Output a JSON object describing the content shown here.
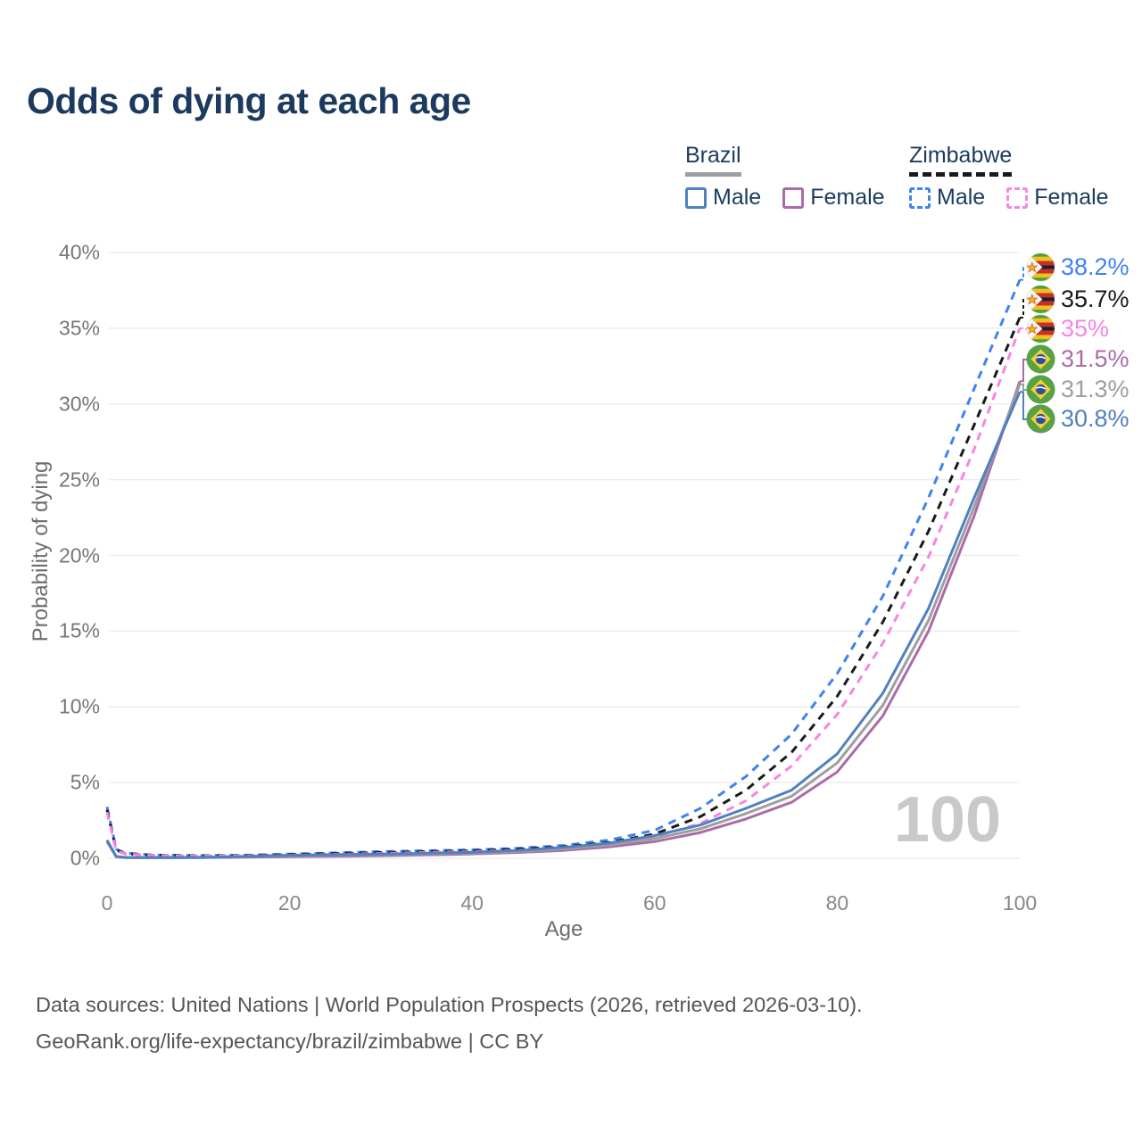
{
  "title": "Odds of dying at each age",
  "legend": {
    "brazil": {
      "label": "Brazil",
      "male": "Male",
      "female": "Female"
    },
    "zimbabwe": {
      "label": "Zimbabwe",
      "male": "Male",
      "female": "Female"
    }
  },
  "axes": {
    "y_label": "Probability of dying",
    "x_label": "Age",
    "y_tick_values": [
      0,
      5,
      10,
      15,
      20,
      25,
      30,
      35,
      40
    ],
    "y_tick_labels": [
      "0%",
      "5%",
      "10%",
      "15%",
      "20%",
      "25%",
      "30%",
      "35%",
      "40%"
    ],
    "x_tick_values": [
      0,
      20,
      40,
      60,
      80,
      100
    ],
    "x_tick_labels": [
      "0",
      "20",
      "40",
      "60",
      "80",
      "100"
    ]
  },
  "hover_age": "100",
  "footer": {
    "line1": "Data sources: United Nations | World Population Prospects (2026, retrieved 2026-03-10).",
    "line2": "GeoRank.org/life-expectancy/brazil/zimbabwe | CC BY"
  },
  "colors": {
    "title": "#1c3a5e",
    "grid": "#ececec",
    "brazil_total": "#9e9e9e",
    "zimbabwe_total": "#1a1a1a"
  },
  "chart_data": {
    "type": "line",
    "xlabel": "Age",
    "ylabel": "Probability of dying",
    "xlim": [
      0,
      100
    ],
    "ylim": [
      0,
      40
    ],
    "grid": "horizontal",
    "x_units": "years",
    "y_units": "percent",
    "series": [
      {
        "name": "Zimbabwe Male",
        "country": "Zimbabwe",
        "sex": "male",
        "color": "#3f82f2",
        "dash": true,
        "flag": "zw",
        "end_label": "38.2%",
        "points": [
          [
            0,
            3.4
          ],
          [
            1,
            0.6
          ],
          [
            2,
            0.35
          ],
          [
            5,
            0.22
          ],
          [
            10,
            0.18
          ],
          [
            15,
            0.2
          ],
          [
            20,
            0.28
          ],
          [
            25,
            0.36
          ],
          [
            30,
            0.44
          ],
          [
            35,
            0.5
          ],
          [
            40,
            0.56
          ],
          [
            45,
            0.66
          ],
          [
            50,
            0.85
          ],
          [
            55,
            1.2
          ],
          [
            60,
            1.85
          ],
          [
            65,
            3.3
          ],
          [
            70,
            5.4
          ],
          [
            75,
            8.2
          ],
          [
            80,
            12.2
          ],
          [
            85,
            17.3
          ],
          [
            90,
            23.8
          ],
          [
            95,
            31.0
          ],
          [
            100,
            38.2
          ]
        ]
      },
      {
        "name": "Zimbabwe Both sexes",
        "country": "Zimbabwe",
        "sex": "total",
        "color": "#1a1a1a",
        "dash": true,
        "flag": "zw",
        "end_label": "35.7%",
        "points": [
          [
            0,
            3.2
          ],
          [
            1,
            0.55
          ],
          [
            2,
            0.3
          ],
          [
            5,
            0.2
          ],
          [
            10,
            0.16
          ],
          [
            15,
            0.18
          ],
          [
            20,
            0.24
          ],
          [
            25,
            0.31
          ],
          [
            30,
            0.38
          ],
          [
            35,
            0.44
          ],
          [
            40,
            0.5
          ],
          [
            45,
            0.6
          ],
          [
            50,
            0.76
          ],
          [
            55,
            1.05
          ],
          [
            60,
            1.6
          ],
          [
            65,
            2.75
          ],
          [
            70,
            4.5
          ],
          [
            75,
            7.0
          ],
          [
            80,
            10.7
          ],
          [
            85,
            15.6
          ],
          [
            90,
            21.6
          ],
          [
            95,
            28.6
          ],
          [
            100,
            35.7
          ]
        ]
      },
      {
        "name": "Zimbabwe Female",
        "country": "Zimbabwe",
        "sex": "female",
        "color": "#f884e4",
        "dash": true,
        "flag": "zw",
        "end_label": "35%",
        "points": [
          [
            0,
            3.05
          ],
          [
            1,
            0.5
          ],
          [
            2,
            0.28
          ],
          [
            5,
            0.18
          ],
          [
            10,
            0.14
          ],
          [
            15,
            0.16
          ],
          [
            20,
            0.2
          ],
          [
            25,
            0.26
          ],
          [
            30,
            0.32
          ],
          [
            35,
            0.38
          ],
          [
            40,
            0.44
          ],
          [
            45,
            0.53
          ],
          [
            50,
            0.67
          ],
          [
            55,
            0.92
          ],
          [
            60,
            1.4
          ],
          [
            65,
            2.3
          ],
          [
            70,
            3.8
          ],
          [
            75,
            6.1
          ],
          [
            80,
            9.5
          ],
          [
            85,
            14.2
          ],
          [
            90,
            19.9
          ],
          [
            95,
            27.0
          ],
          [
            100,
            35.0
          ]
        ]
      },
      {
        "name": "Brazil Female",
        "country": "Brazil",
        "sex": "female",
        "color": "#ab6ba8",
        "dash": false,
        "flag": "br",
        "end_label": "31.5%",
        "points": [
          [
            0,
            1.1
          ],
          [
            1,
            0.1
          ],
          [
            2,
            0.05
          ],
          [
            5,
            0.04
          ],
          [
            10,
            0.045
          ],
          [
            15,
            0.07
          ],
          [
            20,
            0.1
          ],
          [
            25,
            0.13
          ],
          [
            30,
            0.17
          ],
          [
            35,
            0.22
          ],
          [
            40,
            0.29
          ],
          [
            45,
            0.38
          ],
          [
            50,
            0.52
          ],
          [
            55,
            0.75
          ],
          [
            60,
            1.1
          ],
          [
            65,
            1.7
          ],
          [
            70,
            2.6
          ],
          [
            75,
            3.7
          ],
          [
            80,
            5.7
          ],
          [
            85,
            9.4
          ],
          [
            90,
            15.0
          ],
          [
            95,
            22.6
          ],
          [
            100,
            31.5
          ]
        ]
      },
      {
        "name": "Brazil Both sexes",
        "country": "Brazil",
        "sex": "total",
        "color": "#9e9e9e",
        "dash": false,
        "flag": "br",
        "end_label": "31.3%",
        "points": [
          [
            0,
            1.15
          ],
          [
            1,
            0.11
          ],
          [
            2,
            0.055
          ],
          [
            5,
            0.045
          ],
          [
            10,
            0.05
          ],
          [
            15,
            0.1
          ],
          [
            20,
            0.16
          ],
          [
            25,
            0.2
          ],
          [
            30,
            0.23
          ],
          [
            35,
            0.28
          ],
          [
            40,
            0.35
          ],
          [
            45,
            0.45
          ],
          [
            50,
            0.62
          ],
          [
            55,
            0.88
          ],
          [
            60,
            1.3
          ],
          [
            65,
            1.95
          ],
          [
            70,
            2.95
          ],
          [
            75,
            4.1
          ],
          [
            80,
            6.3
          ],
          [
            85,
            10.1
          ],
          [
            90,
            15.7
          ],
          [
            95,
            23.2
          ],
          [
            100,
            31.3
          ]
        ]
      },
      {
        "name": "Brazil Male",
        "country": "Brazil",
        "sex": "male",
        "color": "#4f80c0",
        "dash": false,
        "flag": "br",
        "end_label": "30.8%",
        "points": [
          [
            0,
            1.2
          ],
          [
            1,
            0.12
          ],
          [
            2,
            0.06
          ],
          [
            5,
            0.05
          ],
          [
            10,
            0.06
          ],
          [
            15,
            0.12
          ],
          [
            20,
            0.2
          ],
          [
            25,
            0.24
          ],
          [
            30,
            0.28
          ],
          [
            35,
            0.33
          ],
          [
            40,
            0.4
          ],
          [
            45,
            0.52
          ],
          [
            50,
            0.72
          ],
          [
            55,
            1.0
          ],
          [
            60,
            1.5
          ],
          [
            65,
            2.2
          ],
          [
            70,
            3.3
          ],
          [
            75,
            4.5
          ],
          [
            80,
            6.9
          ],
          [
            85,
            10.9
          ],
          [
            90,
            16.5
          ],
          [
            95,
            23.8
          ],
          [
            100,
            30.8
          ]
        ]
      }
    ]
  }
}
